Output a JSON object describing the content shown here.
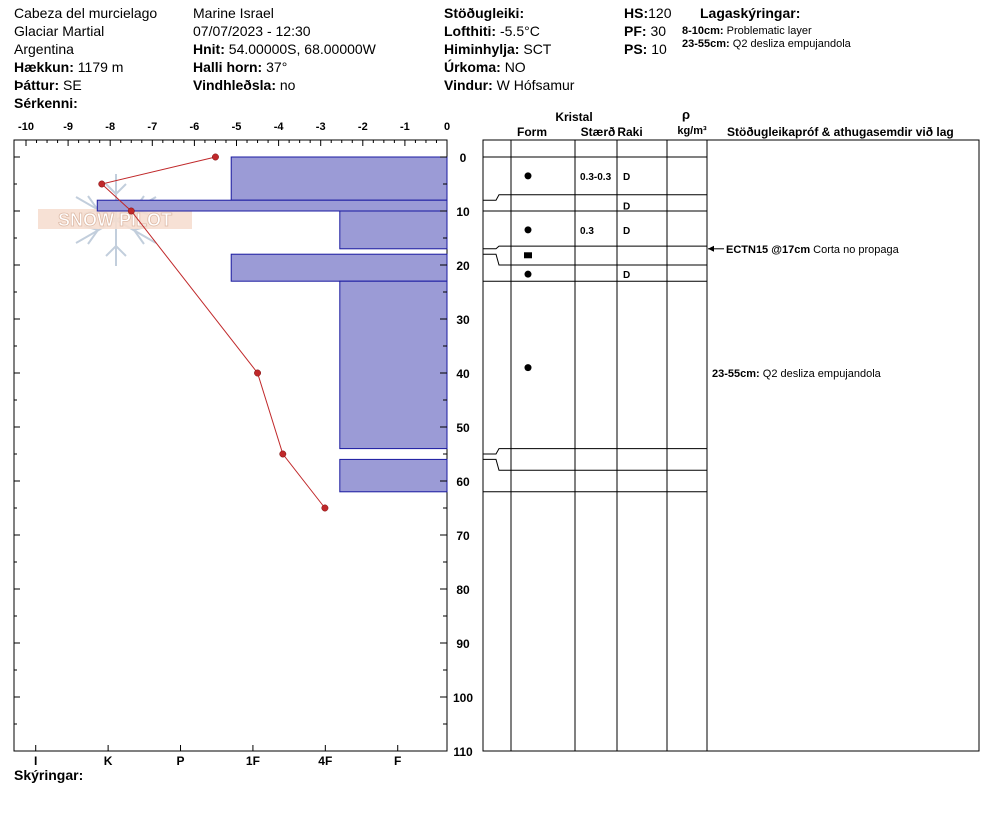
{
  "header": {
    "location": "Cabeza del murcielago",
    "region": "Glaciar Martial",
    "country": "Argentina",
    "elevation_label": "Hækkun:",
    "elevation": "1179 m",
    "aspect_label": "Þáttur:",
    "aspect": "SE",
    "features_label": "Sérkenni:",
    "observer": "Marine Israel",
    "datetime": "07/07/2023 - 12:30",
    "coords_label": "Hnit:",
    "coords": "54.00000S, 68.00000W",
    "slope_label": "Halli horn:",
    "slope": "37°",
    "wind_loading_label": "Vindhleðsla:",
    "wind_loading": "no",
    "stability_label": "Stöðugleiki:",
    "air_temp_label": "Lofthiti:",
    "air_temp": "-5.5°C",
    "sky_label": "Himinhylja:",
    "sky": "SCT",
    "precip_label": "Úrkoma:",
    "precip": "NO",
    "wind_label": "Vindur:",
    "wind": "W Hófsamur",
    "hs_label": "HS:",
    "hs": "120",
    "pf_label": "PF:",
    "pf": "30",
    "ps_label": "PS:",
    "ps": "10",
    "layer_notes_label": "Lagaskýringar:",
    "layer_notes": [
      {
        "range": "8-10cm:",
        "text": "Problematic layer"
      },
      {
        "range": "23-55cm:",
        "text": "Q2 desliza empujandola"
      }
    ],
    "legend_label": "Skýringar:"
  },
  "logo_text": "SNOW PILOT",
  "colors": {
    "hardness_fill": "#9b9bd6",
    "hardness_stroke": "#1a1aa0",
    "temp_line": "#c0282a"
  },
  "table_headers": {
    "kristal": "Kristal",
    "form": "Form",
    "size": "Stærð",
    "moisture": "Raki",
    "rho": "ρ",
    "density_unit": "kg/m³",
    "tests": "Stöðugleikapróf & athugasemdir við lag"
  },
  "chart_data": {
    "type": "snow_profile",
    "temperature_axis": {
      "ticks": [
        "-10",
        "-9",
        "-8",
        "-7",
        "-6",
        "-5",
        "-4",
        "-3",
        "-2",
        "-1",
        "0"
      ],
      "range": [
        -10,
        0
      ]
    },
    "depth_axis": {
      "ticks": [
        "0",
        "10",
        "20",
        "30",
        "40",
        "50",
        "60",
        "70",
        "80",
        "90",
        "100",
        "110"
      ],
      "range": [
        0,
        110
      ]
    },
    "hardness_axis": {
      "ticks": [
        "I",
        "K",
        "P",
        "1F",
        "4F",
        "F"
      ]
    },
    "temperature_profile": [
      {
        "depth": 0,
        "temp": -5.5
      },
      {
        "depth": 5,
        "temp": -8.2
      },
      {
        "depth": 10,
        "temp": -7.5
      },
      {
        "depth": 40,
        "temp": -4.5
      },
      {
        "depth": 55,
        "temp": -3.9
      },
      {
        "depth": 65,
        "temp": -2.9
      }
    ],
    "hardness_layers": [
      {
        "top": 0,
        "bottom": 8,
        "hardness": 3.0
      },
      {
        "top": 8,
        "bottom": 10,
        "hardness": 1.15
      },
      {
        "top": 10,
        "bottom": 17,
        "hardness": 4.5
      },
      {
        "top": 17,
        "bottom": 18,
        "hardness": 6.2
      },
      {
        "top": 18,
        "bottom": 23,
        "hardness": 3.0
      },
      {
        "top": 23,
        "bottom": 54,
        "hardness": 4.5
      },
      {
        "top": 54,
        "bottom": 56,
        "hardness": 6.2
      },
      {
        "top": 56,
        "bottom": 62,
        "hardness": 4.5
      },
      {
        "top": 62,
        "bottom": 110,
        "hardness": 6.2
      }
    ],
    "layer_boundaries": [
      0,
      7,
      10,
      16.5,
      20,
      23,
      54,
      58,
      62
    ],
    "layer_rows": [
      {
        "depth": 3.5,
        "form": "dot",
        "size": "0.3-0.3",
        "moisture": "D"
      },
      {
        "depth": 9,
        "form": "",
        "size": "",
        "moisture": "D"
      },
      {
        "depth": 13.5,
        "form": "dot",
        "size": "0.3",
        "moisture": "D"
      },
      {
        "depth": 18.2,
        "form": "square",
        "size": "",
        "moisture": ""
      },
      {
        "depth": 21.7,
        "form": "dot",
        "size": "",
        "moisture": "D"
      },
      {
        "depth": 39,
        "form": "dot",
        "size": "",
        "moisture": ""
      }
    ],
    "stability_tests": [
      {
        "depth": 17,
        "label": "ECTN15 @17cm",
        "text": "Corta no propaga",
        "arrow": true
      },
      {
        "depth": 40,
        "label": "23-55cm:",
        "text": "Q2 desliza empujandola",
        "arrow": false
      }
    ]
  }
}
